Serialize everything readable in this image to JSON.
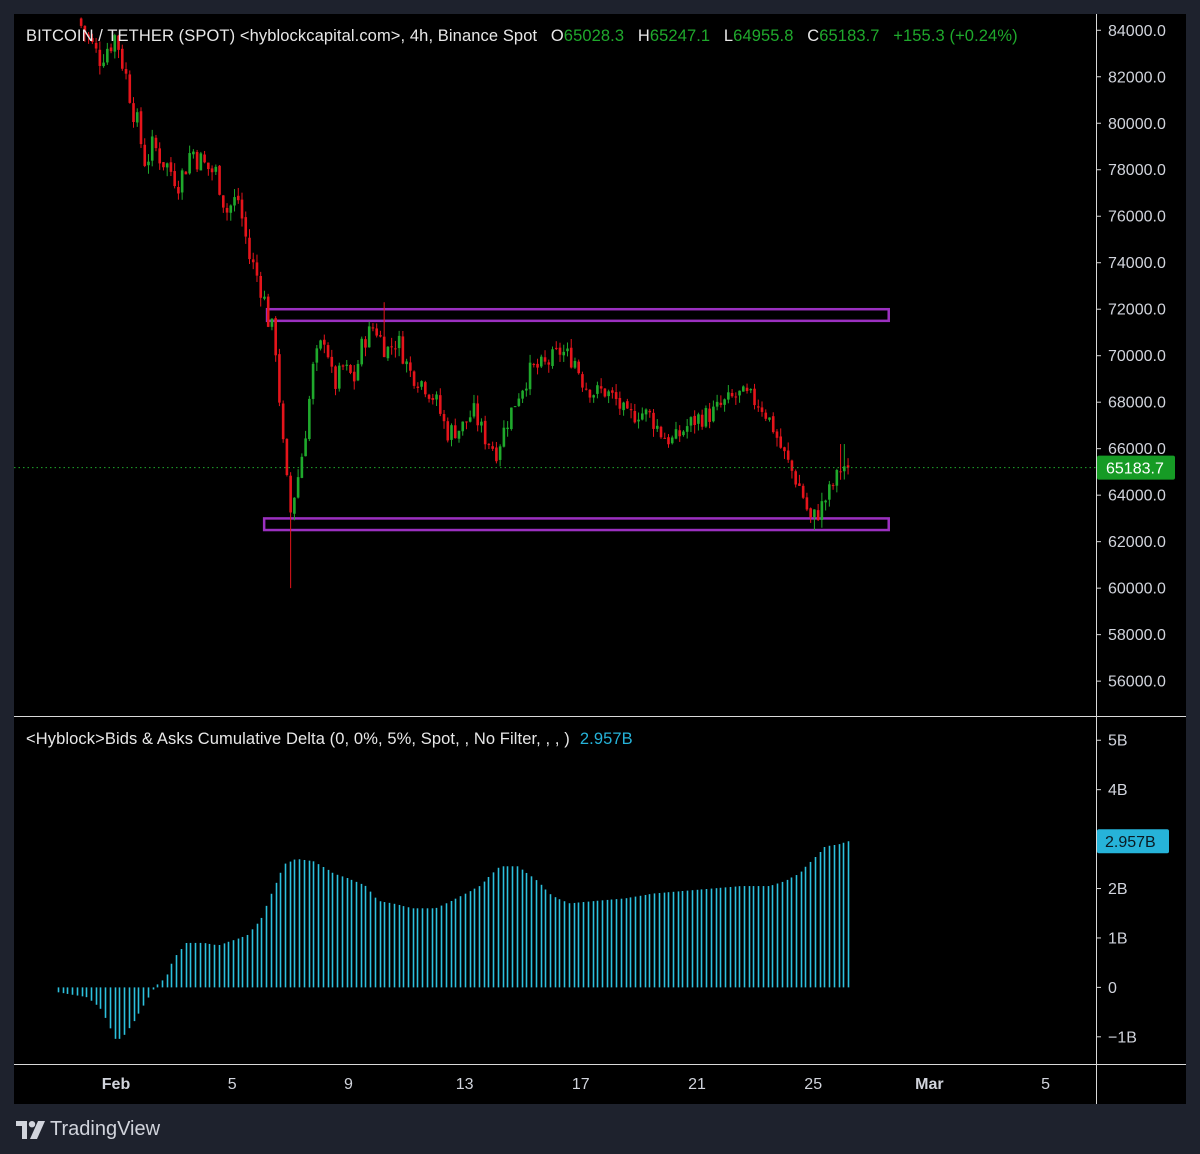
{
  "header": {
    "symbol": "BITCOIN / TETHER (SPOT) <hyblockcapital.com>, 4h, Binance Spot",
    "o_label": "O",
    "o_value": "65028.3",
    "h_label": "H",
    "h_value": "65247.1",
    "l_label": "L",
    "l_value": "64955.8",
    "c_label": "C",
    "c_value": "65183.7",
    "change": "+155.3 (+0.24%)"
  },
  "indicator": {
    "title": "<Hyblock>Bids & Asks Cumulative Delta (0, 0%, 5%, Spot, , No Filter, , , )",
    "value": "2.957B"
  },
  "footer": {
    "brand": "TradingView"
  },
  "colors": {
    "up": "#1fa92c",
    "down": "#e5141b",
    "histogram": "#2cc0dd",
    "zone": "#9b30c0",
    "last_price_bg": "#169b25",
    "indicator_value_bg": "#26b3d9",
    "background": "#000000"
  },
  "chart_data": [
    {
      "type": "candlestick",
      "title": "BITCOIN / TETHER (SPOT) <hyblockcapital.com>, 4h, Binance Spot",
      "y_ticks": [
        84000,
        82000,
        80000,
        78000,
        76000,
        74000,
        72000,
        70000,
        68000,
        66000,
        64000,
        62000,
        60000,
        58000,
        56000
      ],
      "y_tick_labels": [
        "84000.0",
        "82000.0",
        "80000.0",
        "78000.0",
        "76000.0",
        "74000.0",
        "72000.0",
        "70000.0",
        "68000.0",
        "66000.0",
        "64000.0",
        "62000.0",
        "60000.0",
        "58000.0",
        "56000.0"
      ],
      "ylim": [
        54500,
        84700
      ],
      "last_price": 65183.7,
      "last_price_label": "65183.7",
      "zones": [
        {
          "name": "resistance",
          "y1": 71500,
          "y2": 72000,
          "from_day": 5.2,
          "to_day": 26.6
        },
        {
          "name": "support",
          "y1": 62500,
          "y2": 63000,
          "from_day": 5.1,
          "to_day": 26.6
        }
      ],
      "close_path": [
        [
          -1.2,
          84200
        ],
        [
          -0.6,
          82800
        ],
        [
          0.0,
          83800
        ],
        [
          0.5,
          81200
        ],
        [
          1.0,
          78400
        ],
        [
          1.3,
          79000
        ],
        [
          1.8,
          78100
        ],
        [
          2.2,
          77500
        ],
        [
          2.6,
          78900
        ],
        [
          3.0,
          78200
        ],
        [
          3.5,
          77800
        ],
        [
          3.8,
          76200
        ],
        [
          4.2,
          76800
        ],
        [
          4.6,
          74200
        ],
        [
          5.0,
          73000
        ],
        [
          5.2,
          71800
        ],
        [
          5.5,
          70400
        ],
        [
          5.8,
          65200
        ],
        [
          6.0,
          63200
        ],
        [
          6.3,
          65000
        ],
        [
          6.5,
          66500
        ],
        [
          6.8,
          69600
        ],
        [
          7.2,
          70900
        ],
        [
          7.5,
          68600
        ],
        [
          7.8,
          69500
        ],
        [
          8.2,
          69000
        ],
        [
          8.5,
          70600
        ],
        [
          8.9,
          71300
        ],
        [
          9.3,
          70200
        ],
        [
          9.7,
          70700
        ],
        [
          10.1,
          69300
        ],
        [
          10.6,
          68800
        ],
        [
          11.0,
          68100
        ],
        [
          11.4,
          66700
        ],
        [
          11.9,
          66900
        ],
        [
          12.3,
          67600
        ],
        [
          12.7,
          66500
        ],
        [
          13.1,
          65900
        ],
        [
          13.5,
          67300
        ],
        [
          13.9,
          68500
        ],
        [
          14.3,
          69400
        ],
        [
          14.8,
          69600
        ],
        [
          15.3,
          70200
        ],
        [
          15.8,
          69800
        ],
        [
          16.1,
          68800
        ],
        [
          16.5,
          68400
        ],
        [
          16.8,
          68500
        ],
        [
          17.2,
          68100
        ],
        [
          17.6,
          67300
        ],
        [
          18.0,
          67600
        ],
        [
          18.4,
          67400
        ],
        [
          18.8,
          66600
        ],
        [
          19.2,
          66300
        ],
        [
          19.6,
          66900
        ],
        [
          20.0,
          67300
        ],
        [
          20.5,
          67500
        ],
        [
          20.9,
          67900
        ],
        [
          21.4,
          68300
        ],
        [
          21.8,
          68200
        ],
        [
          22.2,
          67900
        ],
        [
          22.6,
          67000
        ],
        [
          22.9,
          66000
        ],
        [
          23.2,
          65200
        ],
        [
          23.6,
          64200
        ],
        [
          23.9,
          62900
        ],
        [
          24.2,
          63300
        ],
        [
          24.5,
          64000
        ],
        [
          24.8,
          64700
        ],
        [
          25.0,
          65300
        ],
        [
          25.2,
          65183.7
        ]
      ],
      "wicks": [
        {
          "day": 6.0,
          "low": 60000
        },
        {
          "day": 9.2,
          "high": 72300
        },
        {
          "day": 24.0,
          "low": 62500
        },
        {
          "day": 25.0,
          "high": 66200
        }
      ],
      "candle_count": 206
    },
    {
      "type": "histogram",
      "title": "<Hyblock>Bids & Asks Cumulative Delta (0, 0%, 5%, Spot, , No Filter, , , )",
      "last_value": 2.957,
      "unit": "B",
      "y_ticks": [
        5,
        4,
        3,
        2,
        1,
        0,
        -1
      ],
      "y_tick_labels": [
        "5B",
        "4B",
        "",
        "2B",
        "1B",
        "0",
        "−1B"
      ],
      "ylim": [
        -1.55,
        5.45
      ],
      "value_path": [
        [
          -2.0,
          -0.1
        ],
        [
          -1.0,
          -0.2
        ],
        [
          -0.5,
          -0.45
        ],
        [
          0.0,
          -1.1
        ],
        [
          0.3,
          -0.95
        ],
        [
          0.7,
          -0.6
        ],
        [
          1.0,
          -0.3
        ],
        [
          1.3,
          0.0
        ],
        [
          1.7,
          0.2
        ],
        [
          2.0,
          0.6
        ],
        [
          2.4,
          0.9
        ],
        [
          3.0,
          0.9
        ],
        [
          3.5,
          0.85
        ],
        [
          4.0,
          0.95
        ],
        [
          4.5,
          1.05
        ],
        [
          5.0,
          1.4
        ],
        [
          5.4,
          2.0
        ],
        [
          5.8,
          2.5
        ],
        [
          6.2,
          2.6
        ],
        [
          6.8,
          2.55
        ],
        [
          7.5,
          2.3
        ],
        [
          8.0,
          2.2
        ],
        [
          8.6,
          2.05
        ],
        [
          9.0,
          1.75
        ],
        [
          9.5,
          1.7
        ],
        [
          10.2,
          1.6
        ],
        [
          11.0,
          1.6
        ],
        [
          11.7,
          1.8
        ],
        [
          12.5,
          2.05
        ],
        [
          13.2,
          2.45
        ],
        [
          13.8,
          2.45
        ],
        [
          14.4,
          2.2
        ],
        [
          15.0,
          1.85
        ],
        [
          15.6,
          1.7
        ],
        [
          16.5,
          1.75
        ],
        [
          17.5,
          1.8
        ],
        [
          18.5,
          1.9
        ],
        [
          19.5,
          1.95
        ],
        [
          20.5,
          2.0
        ],
        [
          21.5,
          2.05
        ],
        [
          22.5,
          2.05
        ],
        [
          23.0,
          2.15
        ],
        [
          23.5,
          2.3
        ],
        [
          24.0,
          2.6
        ],
        [
          24.4,
          2.85
        ],
        [
          24.9,
          2.9
        ],
        [
          25.2,
          2.957
        ]
      ]
    }
  ],
  "x_axis": {
    "ticks": [
      {
        "day": 0,
        "label": "Feb"
      },
      {
        "day": 4,
        "label": "5"
      },
      {
        "day": 8,
        "label": "9"
      },
      {
        "day": 12,
        "label": "13"
      },
      {
        "day": 16,
        "label": "17"
      },
      {
        "day": 20,
        "label": "21"
      },
      {
        "day": 24,
        "label": "25"
      },
      {
        "day": 28,
        "label": "Mar"
      },
      {
        "day": 32,
        "label": "5"
      }
    ]
  }
}
